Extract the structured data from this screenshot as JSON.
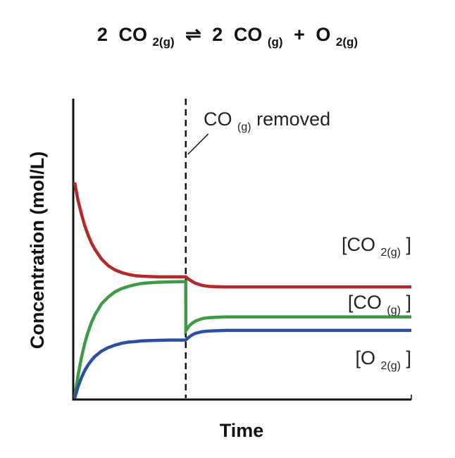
{
  "chart_data": {
    "type": "line",
    "title": {
      "lhs_coef": "2",
      "lhs_species": "CO",
      "lhs_subscript": "2(g)",
      "arrow": "⇌",
      "rhs1_coef": "2",
      "rhs1_species": "CO",
      "rhs1_subscript": "(g)",
      "plus": "+",
      "rhs2_species": "O",
      "rhs2_subscript": "2(g)"
    },
    "xlabel": "Time",
    "ylabel": "Concentration (mol/L)",
    "xlim": [
      0,
      100
    ],
    "ylim": [
      0,
      100
    ],
    "grid": false,
    "event": {
      "x": 33,
      "label_main": "CO",
      "label_subscript": "(g)",
      "label_rest": " removed"
    },
    "series": [
      {
        "name": "[CO2(g)]",
        "label_species": "[CO",
        "label_subscript": "2(g)",
        "label_close": "]",
        "color": "#b32a2a",
        "x": [
          0,
          1,
          2,
          3,
          4,
          5,
          6,
          8,
          10,
          12,
          14,
          16,
          18,
          20,
          22,
          25,
          28,
          31,
          33,
          34,
          35,
          36,
          38,
          40,
          42,
          45,
          50,
          60,
          70,
          80,
          90,
          100
        ],
        "y": [
          72,
          66,
          61.5,
          57.6,
          54.4,
          51.8,
          49.7,
          46.4,
          44.2,
          42.8,
          41.9,
          41.3,
          40.9,
          40.7,
          40.6,
          40.5,
          40.5,
          40.5,
          40.5,
          39.6,
          38.9,
          38.3,
          37.6,
          37.3,
          37.2,
          37.1,
          37.1,
          37.1,
          37.1,
          37.1,
          37.1,
          37.1
        ]
      },
      {
        "name": "[CO(g)]",
        "label_species": "[CO",
        "label_subscript": "(g)",
        "label_close": "]",
        "color": "#3f9b43",
        "x": [
          0,
          1,
          2,
          3,
          4,
          5,
          6,
          8,
          10,
          12,
          14,
          16,
          18,
          20,
          22,
          25,
          28,
          31,
          33,
          33.01,
          34,
          35,
          36,
          38,
          40,
          42,
          45,
          50,
          60,
          70,
          80,
          90,
          100
        ],
        "y": [
          0,
          7.6,
          13.5,
          18.3,
          22.1,
          25.3,
          27.8,
          31.5,
          33.8,
          35.5,
          36.6,
          37.3,
          37.9,
          38.3,
          38.5,
          38.7,
          38.8,
          38.9,
          38.9,
          22.5,
          24.1,
          25.1,
          25.8,
          26.6,
          26.9,
          27,
          27.1,
          27.1,
          27.1,
          27.1,
          27.1,
          27.1,
          27.1
        ]
      },
      {
        "name": "[O2(g)]",
        "label_species": "[O",
        "label_subscript": "2(g)",
        "label_close": "]",
        "color": "#2c4ea3",
        "x": [
          0,
          1,
          2,
          3,
          4,
          5,
          6,
          8,
          10,
          12,
          14,
          16,
          18,
          20,
          22,
          25,
          28,
          31,
          33,
          34,
          35,
          36,
          38,
          40,
          42,
          45,
          50,
          60,
          70,
          80,
          90,
          100
        ],
        "y": [
          0,
          3.8,
          6.8,
          9.2,
          11.1,
          12.6,
          13.9,
          15.7,
          16.9,
          17.7,
          18.3,
          18.7,
          18.9,
          19.1,
          19.2,
          19.3,
          19.4,
          19.4,
          19.4,
          20.4,
          21.2,
          21.7,
          22.2,
          22.4,
          22.5,
          22.6,
          22.6,
          22.6,
          22.6,
          22.6,
          22.6,
          22.6
        ]
      }
    ]
  }
}
